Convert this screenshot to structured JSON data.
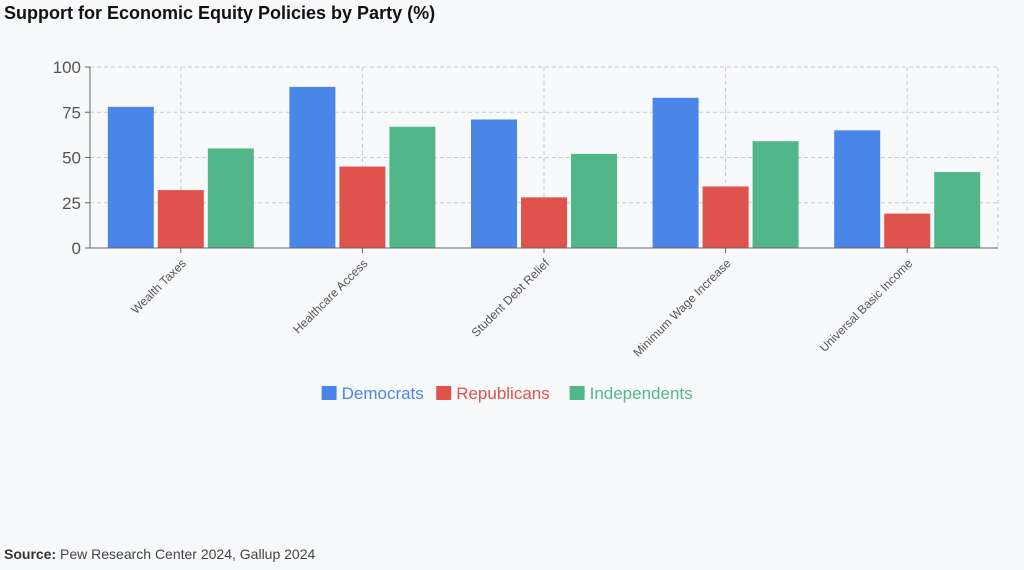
{
  "chart_data": {
    "type": "bar",
    "title": "Support for Economic Equity Policies by Party (%)",
    "xlabel": "",
    "ylabel": "",
    "ylim": [
      0,
      100
    ],
    "yticks": [
      0,
      25,
      50,
      75,
      100
    ],
    "grid": true,
    "legend": "bottom-center",
    "categories": [
      "Wealth Taxes",
      "Healthcare Access",
      "Student Debt Relief",
      "Minimum Wage Increase",
      "Universal Basic Income"
    ],
    "series": [
      {
        "name": "Democrats",
        "color": "#4a86e8",
        "values": [
          78,
          89,
          71,
          83,
          65
        ]
      },
      {
        "name": "Republicans",
        "color": "#e0524c",
        "values": [
          32,
          45,
          28,
          34,
          19
        ]
      },
      {
        "name": "Independents",
        "color": "#52b788",
        "values": [
          55,
          67,
          52,
          59,
          42
        ]
      }
    ]
  },
  "source": {
    "label": "Source:",
    "text": "Pew Research Center 2024, Gallup 2024"
  }
}
